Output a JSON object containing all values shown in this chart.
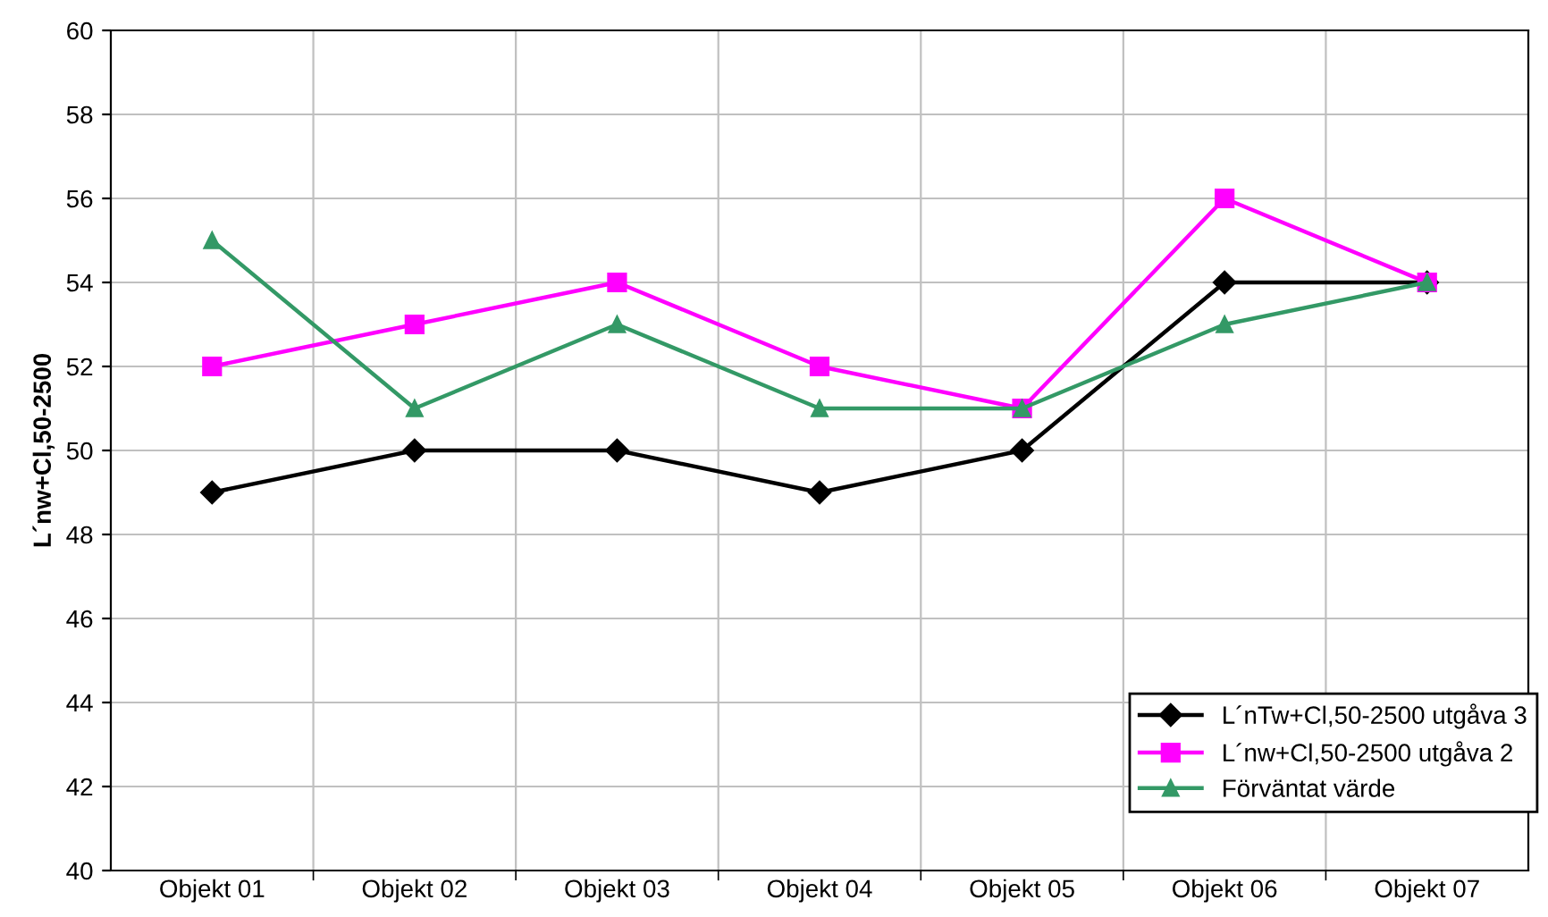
{
  "chart_data": {
    "type": "line",
    "ylabel": "L´nw+Cl,50-2500",
    "categories": [
      "Objekt 01",
      "Objekt 02",
      "Objekt 03",
      "Objekt 04",
      "Objekt 05",
      "Objekt 06",
      "Objekt 07"
    ],
    "series": [
      {
        "name": "L´nTw+Cl,50-2500 utgåva 3",
        "color": "#000000",
        "marker": "diamond",
        "values": [
          49,
          50,
          50,
          49,
          50,
          54,
          54
        ]
      },
      {
        "name": "L´nw+Cl,50-2500 utgåva 2",
        "color": "#ff00ff",
        "marker": "square",
        "values": [
          52,
          53,
          54,
          52,
          51,
          56,
          54
        ]
      },
      {
        "name": "Förväntat värde",
        "color": "#339966",
        "marker": "triangle",
        "values": [
          55,
          51,
          53,
          51,
          51,
          53,
          54
        ]
      }
    ],
    "ylim": [
      40,
      60
    ],
    "yticks": [
      40,
      42,
      44,
      46,
      48,
      50,
      52,
      54,
      56,
      58,
      60
    ],
    "grid": true,
    "legend": "bottom right",
    "line_style": "solid"
  }
}
